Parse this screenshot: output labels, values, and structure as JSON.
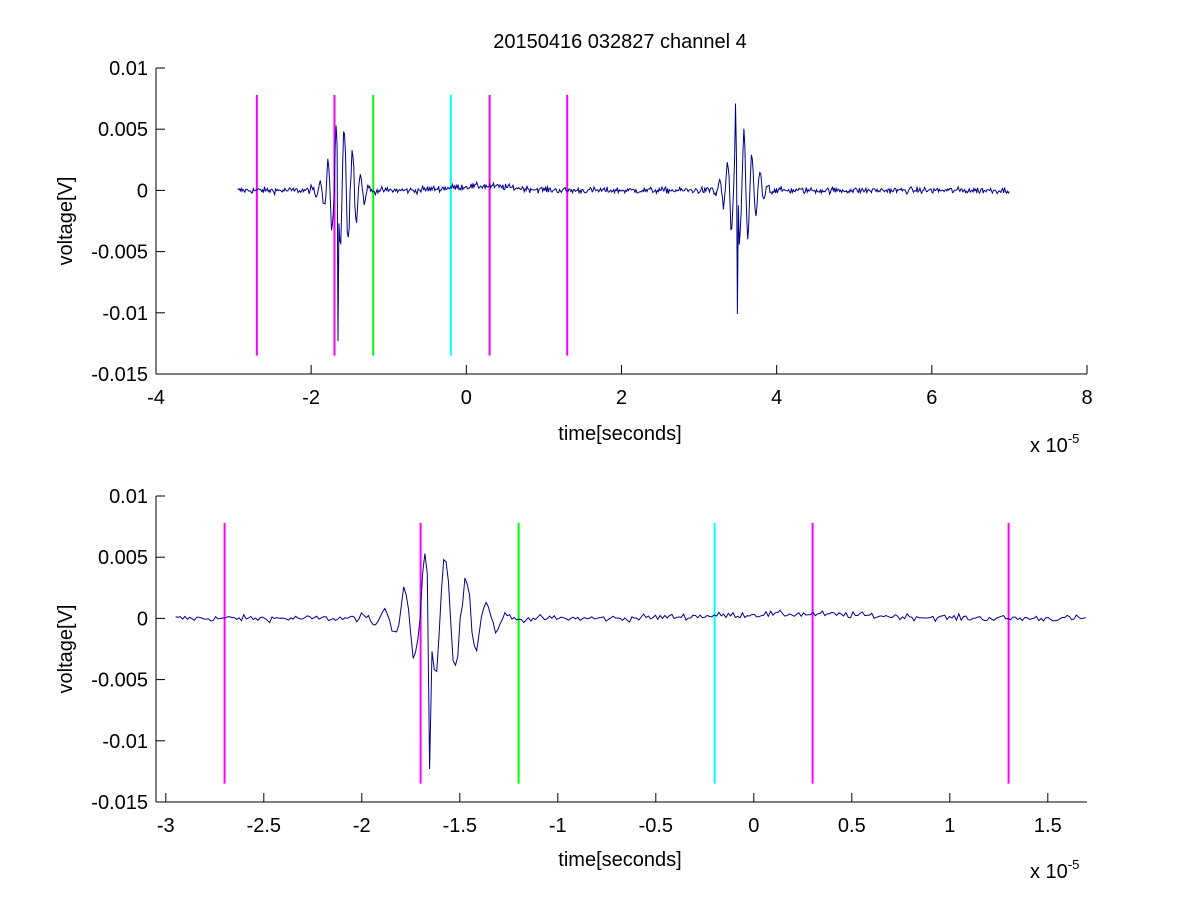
{
  "figure": {
    "title": "20150416 032827 channel 4"
  },
  "colors": {
    "signal": "#00008f",
    "magenta_marker": "#ff00ff",
    "green_marker": "#00ff00",
    "cyan_marker": "#00ffff",
    "axes": "#000000",
    "background": "#ffffff"
  },
  "chart_data": [
    {
      "type": "line",
      "title": "20150416 032827 channel 4",
      "xlabel": "time[seconds]",
      "ylabel": "voltage[V]",
      "x_exponent": "x 10",
      "x_exponent_power": "-5",
      "xlim": [
        -4,
        8
      ],
      "ylim": [
        -0.015,
        0.01
      ],
      "x_ticks": [
        -4,
        -2,
        0,
        2,
        4,
        6,
        8
      ],
      "x_tick_labels": [
        "-4",
        "-2",
        "0",
        "2",
        "4",
        "6",
        "8"
      ],
      "y_ticks": [
        -0.015,
        -0.01,
        -0.005,
        0,
        0.005,
        0.01
      ],
      "y_tick_labels": [
        "-0.015",
        "-0.01",
        "-0.005",
        "0",
        "0.005",
        "0.01"
      ],
      "grid": false,
      "signal": {
        "x_start": -2.95,
        "x_end": 7.0,
        "baseline": 0.0,
        "bursts": [
          {
            "center": -1.6,
            "peak_max": 0.0053,
            "peak_min": -0.0123
          },
          {
            "center": 3.55,
            "peak_max": 0.0071,
            "peak_min": -0.0101
          }
        ]
      },
      "vertical_markers": [
        {
          "x": -2.7,
          "color": "magenta",
          "y_from": -0.0135,
          "y_to": 0.0078
        },
        {
          "x": -1.7,
          "color": "magenta",
          "y_from": -0.0135,
          "y_to": 0.0078
        },
        {
          "x": -1.2,
          "color": "green",
          "y_from": -0.0135,
          "y_to": 0.0078
        },
        {
          "x": -0.2,
          "color": "cyan",
          "y_from": -0.0135,
          "y_to": 0.0078
        },
        {
          "x": 0.3,
          "color": "magenta",
          "y_from": -0.0135,
          "y_to": 0.0078
        },
        {
          "x": 1.3,
          "color": "magenta",
          "y_from": -0.0135,
          "y_to": 0.0078
        }
      ]
    },
    {
      "type": "line",
      "title": "",
      "xlabel": "time[seconds]",
      "ylabel": "voltage[V]",
      "x_exponent": "x 10",
      "x_exponent_power": "-5",
      "xlim": [
        -3.05,
        1.7
      ],
      "ylim": [
        -0.015,
        0.01
      ],
      "x_ticks": [
        -3,
        -2.5,
        -2,
        -1.5,
        -1,
        -0.5,
        0,
        0.5,
        1,
        1.5
      ],
      "x_tick_labels": [
        "-3",
        "-2.5",
        "-2",
        "-1.5",
        "-1",
        "-0.5",
        "0",
        "0.5",
        "1",
        "1.5"
      ],
      "y_ticks": [
        -0.015,
        -0.01,
        -0.005,
        0,
        0.005,
        0.01
      ],
      "y_tick_labels": [
        "-0.015",
        "-0.01",
        "-0.005",
        "0",
        "0.005",
        "0.01"
      ],
      "grid": false,
      "signal": {
        "x_start": -2.95,
        "x_end": 1.7,
        "baseline": 0.0,
        "bursts": [
          {
            "center": -1.6,
            "peak_max": 0.0053,
            "peak_min": -0.0123
          }
        ]
      },
      "vertical_markers": [
        {
          "x": -2.7,
          "color": "magenta",
          "y_from": -0.0135,
          "y_to": 0.0078
        },
        {
          "x": -1.7,
          "color": "magenta",
          "y_from": -0.0135,
          "y_to": 0.0078
        },
        {
          "x": -1.2,
          "color": "green",
          "y_from": -0.0135,
          "y_to": 0.0078
        },
        {
          "x": -0.2,
          "color": "cyan",
          "y_from": -0.0135,
          "y_to": 0.0078
        },
        {
          "x": 0.3,
          "color": "magenta",
          "y_from": -0.0135,
          "y_to": 0.0078
        },
        {
          "x": 1.3,
          "color": "magenta",
          "y_from": -0.0135,
          "y_to": 0.0078
        }
      ]
    }
  ]
}
